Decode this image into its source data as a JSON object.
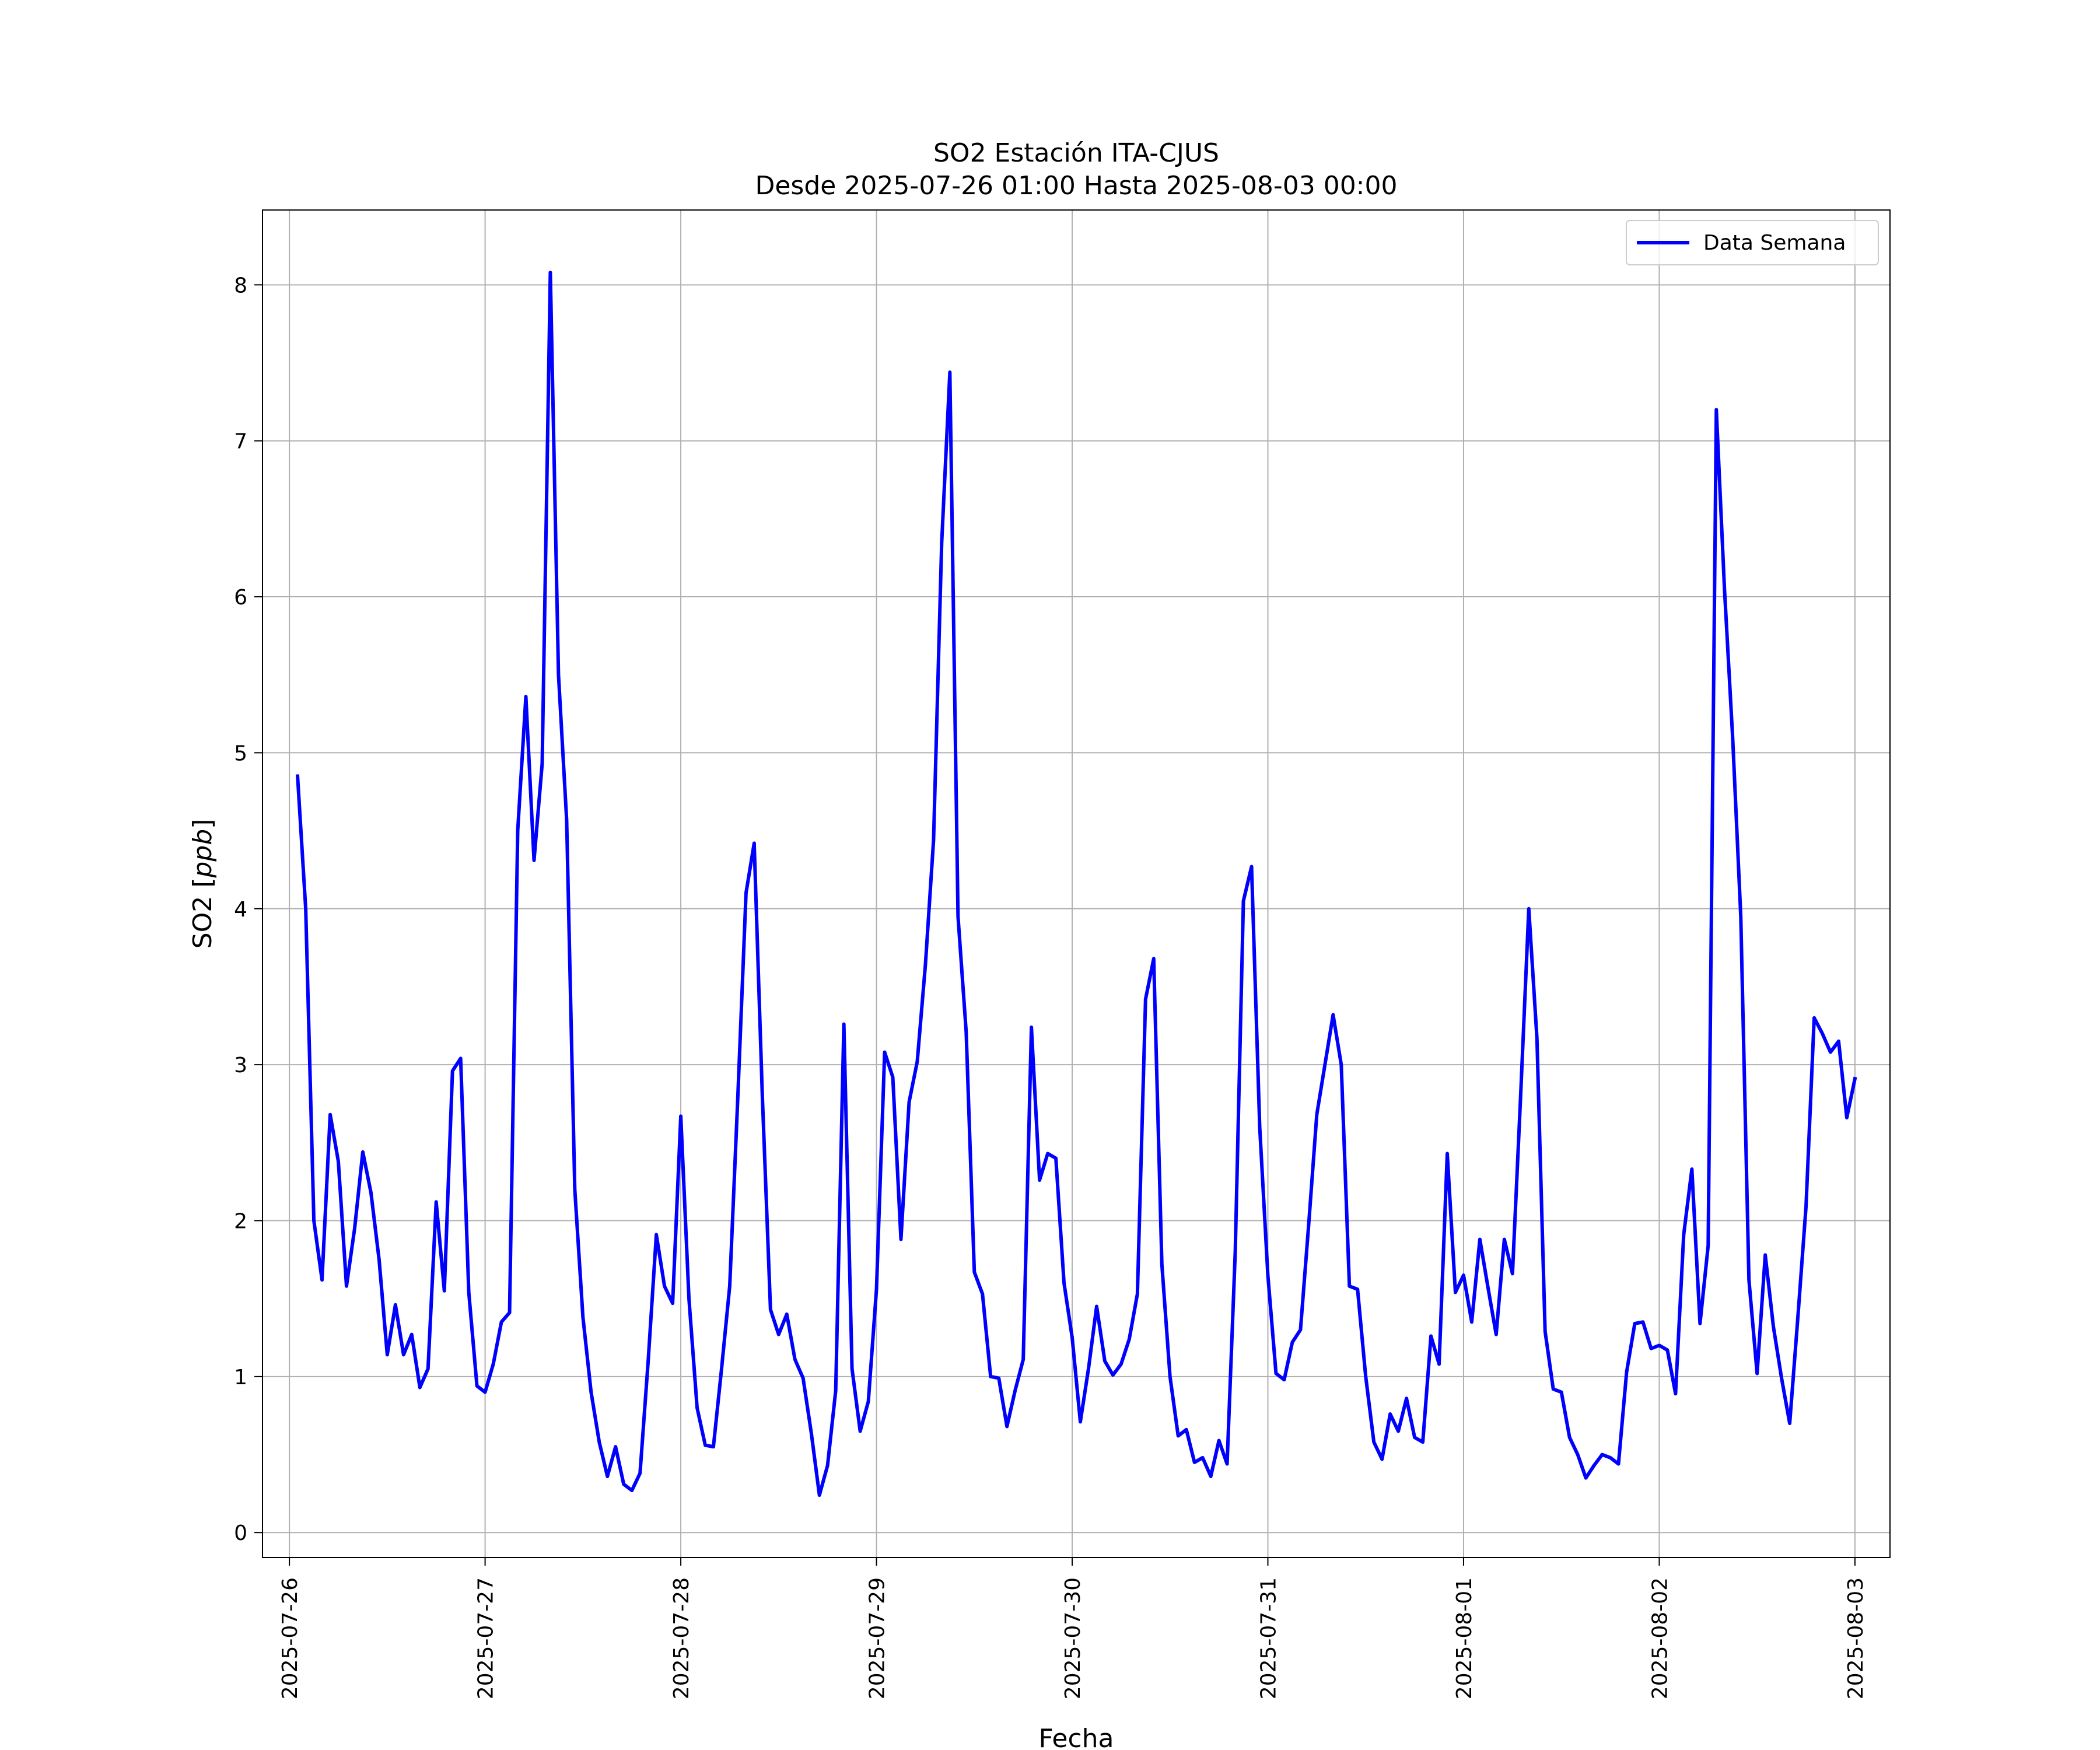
{
  "chart_data": {
    "type": "line",
    "title_line1": "SO2 Estación ITA-CJUS",
    "title_line2": "Desde 2025-07-26 01:00 Hasta 2025-08-03 00:00",
    "xlabel": "Fecha",
    "ylabel": "SO2 [ppb]",
    "ylabel_prefix": "SO2 [",
    "ylabel_unit": "ppb",
    "ylabel_suffix": "]",
    "xlim": [
      "2025-07-25 20:42",
      "2025-08-03 04:18"
    ],
    "ylim": [
      -0.16,
      8.48
    ],
    "xticks": [
      "2025-07-26",
      "2025-07-27",
      "2025-07-28",
      "2025-07-29",
      "2025-07-30",
      "2025-07-31",
      "2025-08-01",
      "2025-08-02",
      "2025-08-03"
    ],
    "yticks": [
      "0",
      "1",
      "2",
      "3",
      "4",
      "5",
      "6",
      "7",
      "8"
    ],
    "grid": true,
    "legend_position": "top-right",
    "series": [
      {
        "name": "Data Semana",
        "color": "#0000ff",
        "x_start": "2025-07-26 01:00",
        "x_step_hours": 1,
        "values": [
          4.85,
          4.0,
          2.0,
          1.62,
          2.68,
          2.38,
          1.58,
          1.95,
          2.44,
          2.18,
          1.75,
          1.14,
          1.46,
          1.14,
          1.27,
          0.93,
          1.05,
          2.12,
          1.55,
          2.96,
          3.04,
          1.54,
          0.94,
          0.9,
          1.08,
          1.35,
          1.41,
          4.5,
          5.36,
          4.31,
          4.93,
          8.08,
          5.5,
          4.57,
          2.2,
          1.38,
          0.9,
          0.58,
          0.36,
          0.55,
          0.31,
          0.27,
          0.38,
          1.1,
          1.91,
          1.58,
          1.47,
          2.67,
          1.5,
          0.8,
          0.56,
          0.55,
          1.05,
          1.58,
          2.8,
          4.1,
          4.42,
          2.8,
          1.43,
          1.27,
          1.4,
          1.11,
          0.99,
          0.64,
          0.24,
          0.43,
          0.91,
          3.26,
          1.05,
          0.65,
          0.84,
          1.56,
          3.08,
          2.92,
          1.88,
          2.76,
          3.02,
          3.64,
          4.44,
          6.35,
          7.44,
          3.95,
          3.21,
          1.67,
          1.53,
          1.0,
          0.99,
          0.68,
          0.91,
          1.11,
          3.24,
          2.26,
          2.43,
          2.4,
          1.6,
          1.25,
          0.71,
          1.05,
          1.45,
          1.1,
          1.01,
          1.08,
          1.24,
          1.53,
          3.42,
          3.68,
          1.72,
          1.0,
          0.62,
          0.66,
          0.45,
          0.48,
          0.36,
          0.59,
          0.44,
          1.8,
          4.05,
          4.27,
          2.6,
          1.65,
          1.02,
          0.98,
          1.22,
          1.3,
          1.97,
          2.68,
          3.0,
          3.32,
          3.0,
          1.58,
          1.56,
          1.0,
          0.58,
          0.47,
          0.76,
          0.65,
          0.86,
          0.61,
          0.58,
          1.26,
          1.08,
          2.43,
          1.54,
          1.65,
          1.35,
          1.88,
          1.57,
          1.27,
          1.88,
          1.66,
          2.8,
          4.0,
          3.17,
          1.29,
          0.92,
          0.9,
          0.61,
          0.5,
          0.35,
          0.43,
          0.5,
          0.48,
          0.44,
          1.03,
          1.34,
          1.35,
          1.18,
          1.2,
          1.17,
          0.89,
          1.91,
          2.33,
          1.34,
          1.84,
          7.2,
          6.05,
          5.1,
          3.95,
          1.62,
          1.02,
          1.78,
          1.32,
          0.99,
          0.7,
          1.38,
          2.09,
          3.3,
          3.2,
          3.08,
          3.15,
          2.66,
          2.91
        ]
      }
    ]
  }
}
